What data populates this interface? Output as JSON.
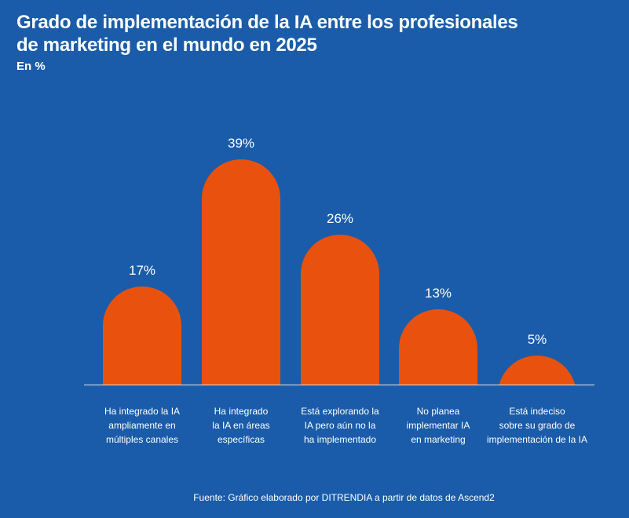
{
  "chart_data": {
    "type": "bar",
    "title": "Grado de implementación de la IA entre los profesionales de marketing en el mundo en 2025",
    "subtitle": "En %",
    "categories": [
      "Ha integrado la IA\nampliamente en\nmúltiples canales",
      "Ha  integrado\nla IA en áreas\nespecíficas",
      "Está explorando la\nIA pero aún no la\nha implementado",
      "No planea\nimplementar IA\nen marketing",
      "Está indeciso\nsobre su grado de\nimplementación de la IA"
    ],
    "values": [
      17,
      39,
      26,
      13,
      5
    ],
    "value_labels": [
      "17%",
      "39%",
      "26%",
      "13%",
      "5%"
    ],
    "ylim": [
      0,
      40
    ],
    "grid": false,
    "bar_color": "#e8520e",
    "background_color": "#1a5ca9",
    "source": "Fuente: Gráfico elaborado por DITRENDIA a partir de datos de Ascend2"
  }
}
